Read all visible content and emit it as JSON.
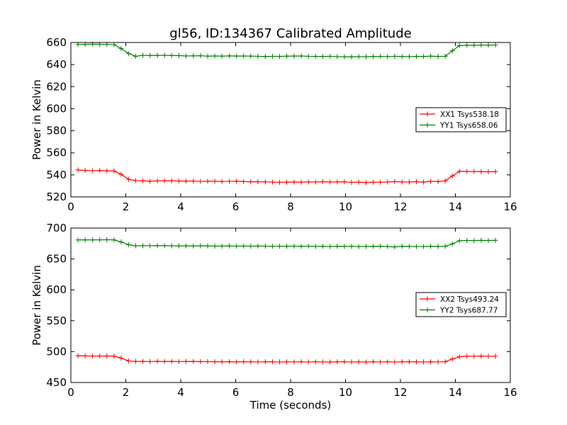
{
  "figure": {
    "title": "gl56, ID:134367 Calibrated Amplitude",
    "xlabel": "Time (seconds)"
  },
  "chart_data": [
    {
      "type": "line",
      "title": "gl56, ID:134367 Calibrated Amplitude",
      "xlabel": "",
      "ylabel": "Power in Kelvin",
      "xlim": [
        0,
        16
      ],
      "ylim": [
        520,
        660
      ],
      "xticks": [
        0,
        2,
        4,
        6,
        8,
        10,
        12,
        14,
        16
      ],
      "yticks": [
        520,
        540,
        560,
        580,
        600,
        620,
        640,
        660
      ],
      "grid": false,
      "legend": "center-right",
      "series": [
        {
          "name": "XX1 Tsys538.18",
          "color": "#ff0000",
          "x": [
            0.26,
            0.52,
            0.79,
            1.05,
            1.31,
            1.57,
            1.83,
            2.1,
            2.36,
            2.62,
            2.88,
            3.15,
            3.41,
            3.67,
            3.93,
            4.19,
            4.46,
            4.72,
            4.98,
            5.24,
            5.5,
            5.77,
            6.03,
            6.29,
            6.55,
            6.81,
            7.08,
            7.34,
            7.6,
            7.86,
            8.13,
            8.39,
            8.65,
            8.91,
            9.17,
            9.44,
            9.7,
            9.96,
            10.22,
            10.48,
            10.75,
            11.01,
            11.27,
            11.53,
            11.79,
            12.06,
            12.32,
            12.58,
            12.84,
            13.1,
            13.37,
            13.63,
            13.89,
            14.15,
            14.42,
            14.68,
            14.94,
            15.2,
            15.46
          ],
          "y": [
            544.5,
            544,
            543.8,
            543.9,
            543.6,
            543.5,
            540.5,
            536,
            534.8,
            534.6,
            534.2,
            534.5,
            534.6,
            534.6,
            534.4,
            534.3,
            534.4,
            534.1,
            534.2,
            534.2,
            534,
            534.1,
            534.3,
            533.9,
            533.7,
            533.8,
            533.6,
            533.5,
            533.2,
            533.4,
            533.5,
            533.4,
            533.6,
            533.5,
            533.8,
            533.5,
            533.6,
            533.7,
            533.2,
            533.4,
            533,
            533.3,
            533.3,
            533.5,
            533.9,
            533.6,
            533.5,
            533.8,
            533.4,
            534.2,
            533.9,
            534.5,
            539,
            543.2,
            543.1,
            543,
            542.9,
            542.8,
            542.9
          ]
        },
        {
          "name": "YY1 Tsys658.06",
          "color": "#008000",
          "x": [
            0.26,
            0.52,
            0.79,
            1.05,
            1.31,
            1.57,
            1.83,
            2.1,
            2.36,
            2.62,
            2.88,
            3.15,
            3.41,
            3.67,
            3.93,
            4.19,
            4.46,
            4.72,
            4.98,
            5.24,
            5.5,
            5.77,
            6.03,
            6.29,
            6.55,
            6.81,
            7.08,
            7.34,
            7.6,
            7.86,
            8.13,
            8.39,
            8.65,
            8.91,
            9.17,
            9.44,
            9.7,
            9.96,
            10.22,
            10.48,
            10.75,
            11.01,
            11.27,
            11.53,
            11.79,
            12.06,
            12.32,
            12.58,
            12.84,
            13.1,
            13.37,
            13.63,
            13.89,
            14.15,
            14.42,
            14.68,
            14.94,
            15.2,
            15.46
          ],
          "y": [
            658.2,
            658.3,
            658.5,
            658.4,
            658.2,
            658.1,
            654.5,
            650,
            647.5,
            648.4,
            648.2,
            648.3,
            648.4,
            648.2,
            648.1,
            647.8,
            647.9,
            648,
            647.6,
            647.8,
            647.6,
            647.9,
            647.7,
            647.8,
            647.6,
            647.5,
            647.3,
            647.5,
            647.4,
            647.6,
            647.7,
            647.8,
            647.5,
            647.4,
            647.3,
            647.5,
            647.2,
            647.1,
            647,
            647.2,
            647.1,
            647.3,
            647.4,
            647.2,
            647.5,
            647.3,
            647.2,
            647.4,
            647.3,
            647.6,
            647.4,
            647.5,
            652.5,
            657.2,
            657.6,
            657.5,
            657.7,
            657.6,
            657.8
          ]
        }
      ]
    },
    {
      "type": "line",
      "title": "",
      "xlabel": "Time (seconds)",
      "ylabel": "Power in Kelvin",
      "xlim": [
        0,
        16
      ],
      "ylim": [
        450,
        700
      ],
      "xticks": [
        0,
        2,
        4,
        6,
        8,
        10,
        12,
        14,
        16
      ],
      "yticks": [
        450,
        500,
        550,
        600,
        650,
        700
      ],
      "grid": false,
      "legend": "center-right",
      "series": [
        {
          "name": "XX2 Tsys493.24",
          "color": "#ff0000",
          "x": [
            0.26,
            0.52,
            0.79,
            1.05,
            1.31,
            1.57,
            1.83,
            2.1,
            2.36,
            2.62,
            2.88,
            3.15,
            3.41,
            3.67,
            3.93,
            4.19,
            4.46,
            4.72,
            4.98,
            5.24,
            5.5,
            5.77,
            6.03,
            6.29,
            6.55,
            6.81,
            7.08,
            7.34,
            7.6,
            7.86,
            8.13,
            8.39,
            8.65,
            8.91,
            9.17,
            9.44,
            9.7,
            9.96,
            10.22,
            10.48,
            10.75,
            11.01,
            11.27,
            11.53,
            11.79,
            12.06,
            12.32,
            12.58,
            12.84,
            13.1,
            13.37,
            13.63,
            13.89,
            14.15,
            14.42,
            14.68,
            14.94,
            15.2,
            15.46
          ],
          "y": [
            493.3,
            493,
            492.9,
            492.8,
            492.9,
            492.7,
            489.5,
            485,
            484.2,
            484.1,
            483.9,
            484.2,
            484,
            484.1,
            483.9,
            484,
            484.1,
            483.8,
            483.9,
            483.6,
            483.5,
            483.7,
            483.4,
            483.6,
            483.5,
            483.3,
            483.6,
            483.5,
            483.2,
            483.4,
            483.3,
            483.5,
            483.2,
            483.4,
            483.3,
            483.1,
            483.5,
            483.6,
            483.2,
            483.4,
            483.1,
            483.5,
            483.3,
            483.4,
            483.2,
            483.5,
            483.6,
            483.4,
            483.2,
            483.5,
            483.3,
            483.6,
            488,
            491.7,
            492.6,
            492.5,
            492.7,
            492.5,
            492.6
          ]
        },
        {
          "name": "YY2 Tsys687.77",
          "color": "#008000",
          "x": [
            0.26,
            0.52,
            0.79,
            1.05,
            1.31,
            1.57,
            1.83,
            2.1,
            2.36,
            2.62,
            2.88,
            3.15,
            3.41,
            3.67,
            3.93,
            4.19,
            4.46,
            4.72,
            4.98,
            5.24,
            5.5,
            5.77,
            6.03,
            6.29,
            6.55,
            6.81,
            7.08,
            7.34,
            7.6,
            7.86,
            8.13,
            8.39,
            8.65,
            8.91,
            9.17,
            9.44,
            9.7,
            9.96,
            10.22,
            10.48,
            10.75,
            11.01,
            11.27,
            11.53,
            11.79,
            12.06,
            12.32,
            12.58,
            12.84,
            13.1,
            13.37,
            13.63,
            13.89,
            14.15,
            14.42,
            14.68,
            14.94,
            15.2,
            15.46
          ],
          "y": [
            680.8,
            681,
            680.9,
            681,
            681.1,
            680.9,
            677.5,
            673,
            671.3,
            671.5,
            671.4,
            671.6,
            671.5,
            671.3,
            671.1,
            671.2,
            671,
            671.3,
            671.2,
            670.8,
            670.9,
            671,
            670.8,
            670.9,
            670.7,
            670.9,
            670.8,
            670.4,
            670.7,
            670.6,
            670.8,
            670.5,
            670.7,
            670.3,
            670.4,
            670.2,
            670.5,
            670.3,
            670.4,
            670.1,
            670.3,
            670.5,
            670.6,
            670.2,
            669.5,
            670.6,
            670.3,
            670.1,
            670.2,
            670.5,
            670.3,
            670.4,
            674.5,
            679.5,
            680,
            679.8,
            680.1,
            679.9,
            680.2
          ]
        }
      ]
    }
  ]
}
